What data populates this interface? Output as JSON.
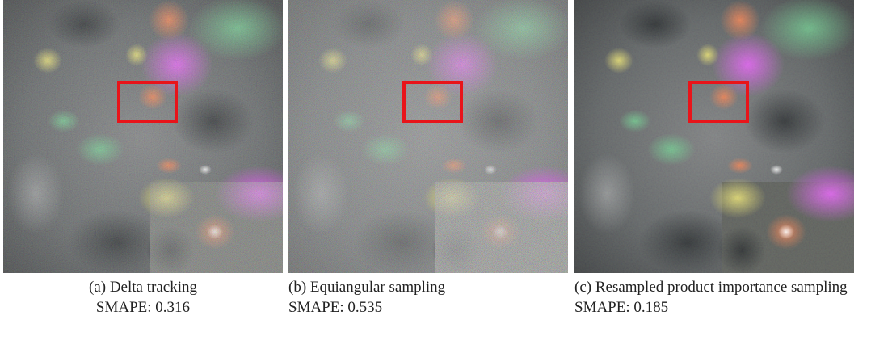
{
  "figure": {
    "panels": [
      {
        "caption": "(a) Delta tracking",
        "metric": "SMAPE: 0.316"
      },
      {
        "caption": "(b) Equiangular sampling",
        "metric": "SMAPE: 0.535"
      },
      {
        "caption": "(c) Resampled product importance sampling",
        "metric": "SMAPE: 0.185"
      }
    ]
  }
}
